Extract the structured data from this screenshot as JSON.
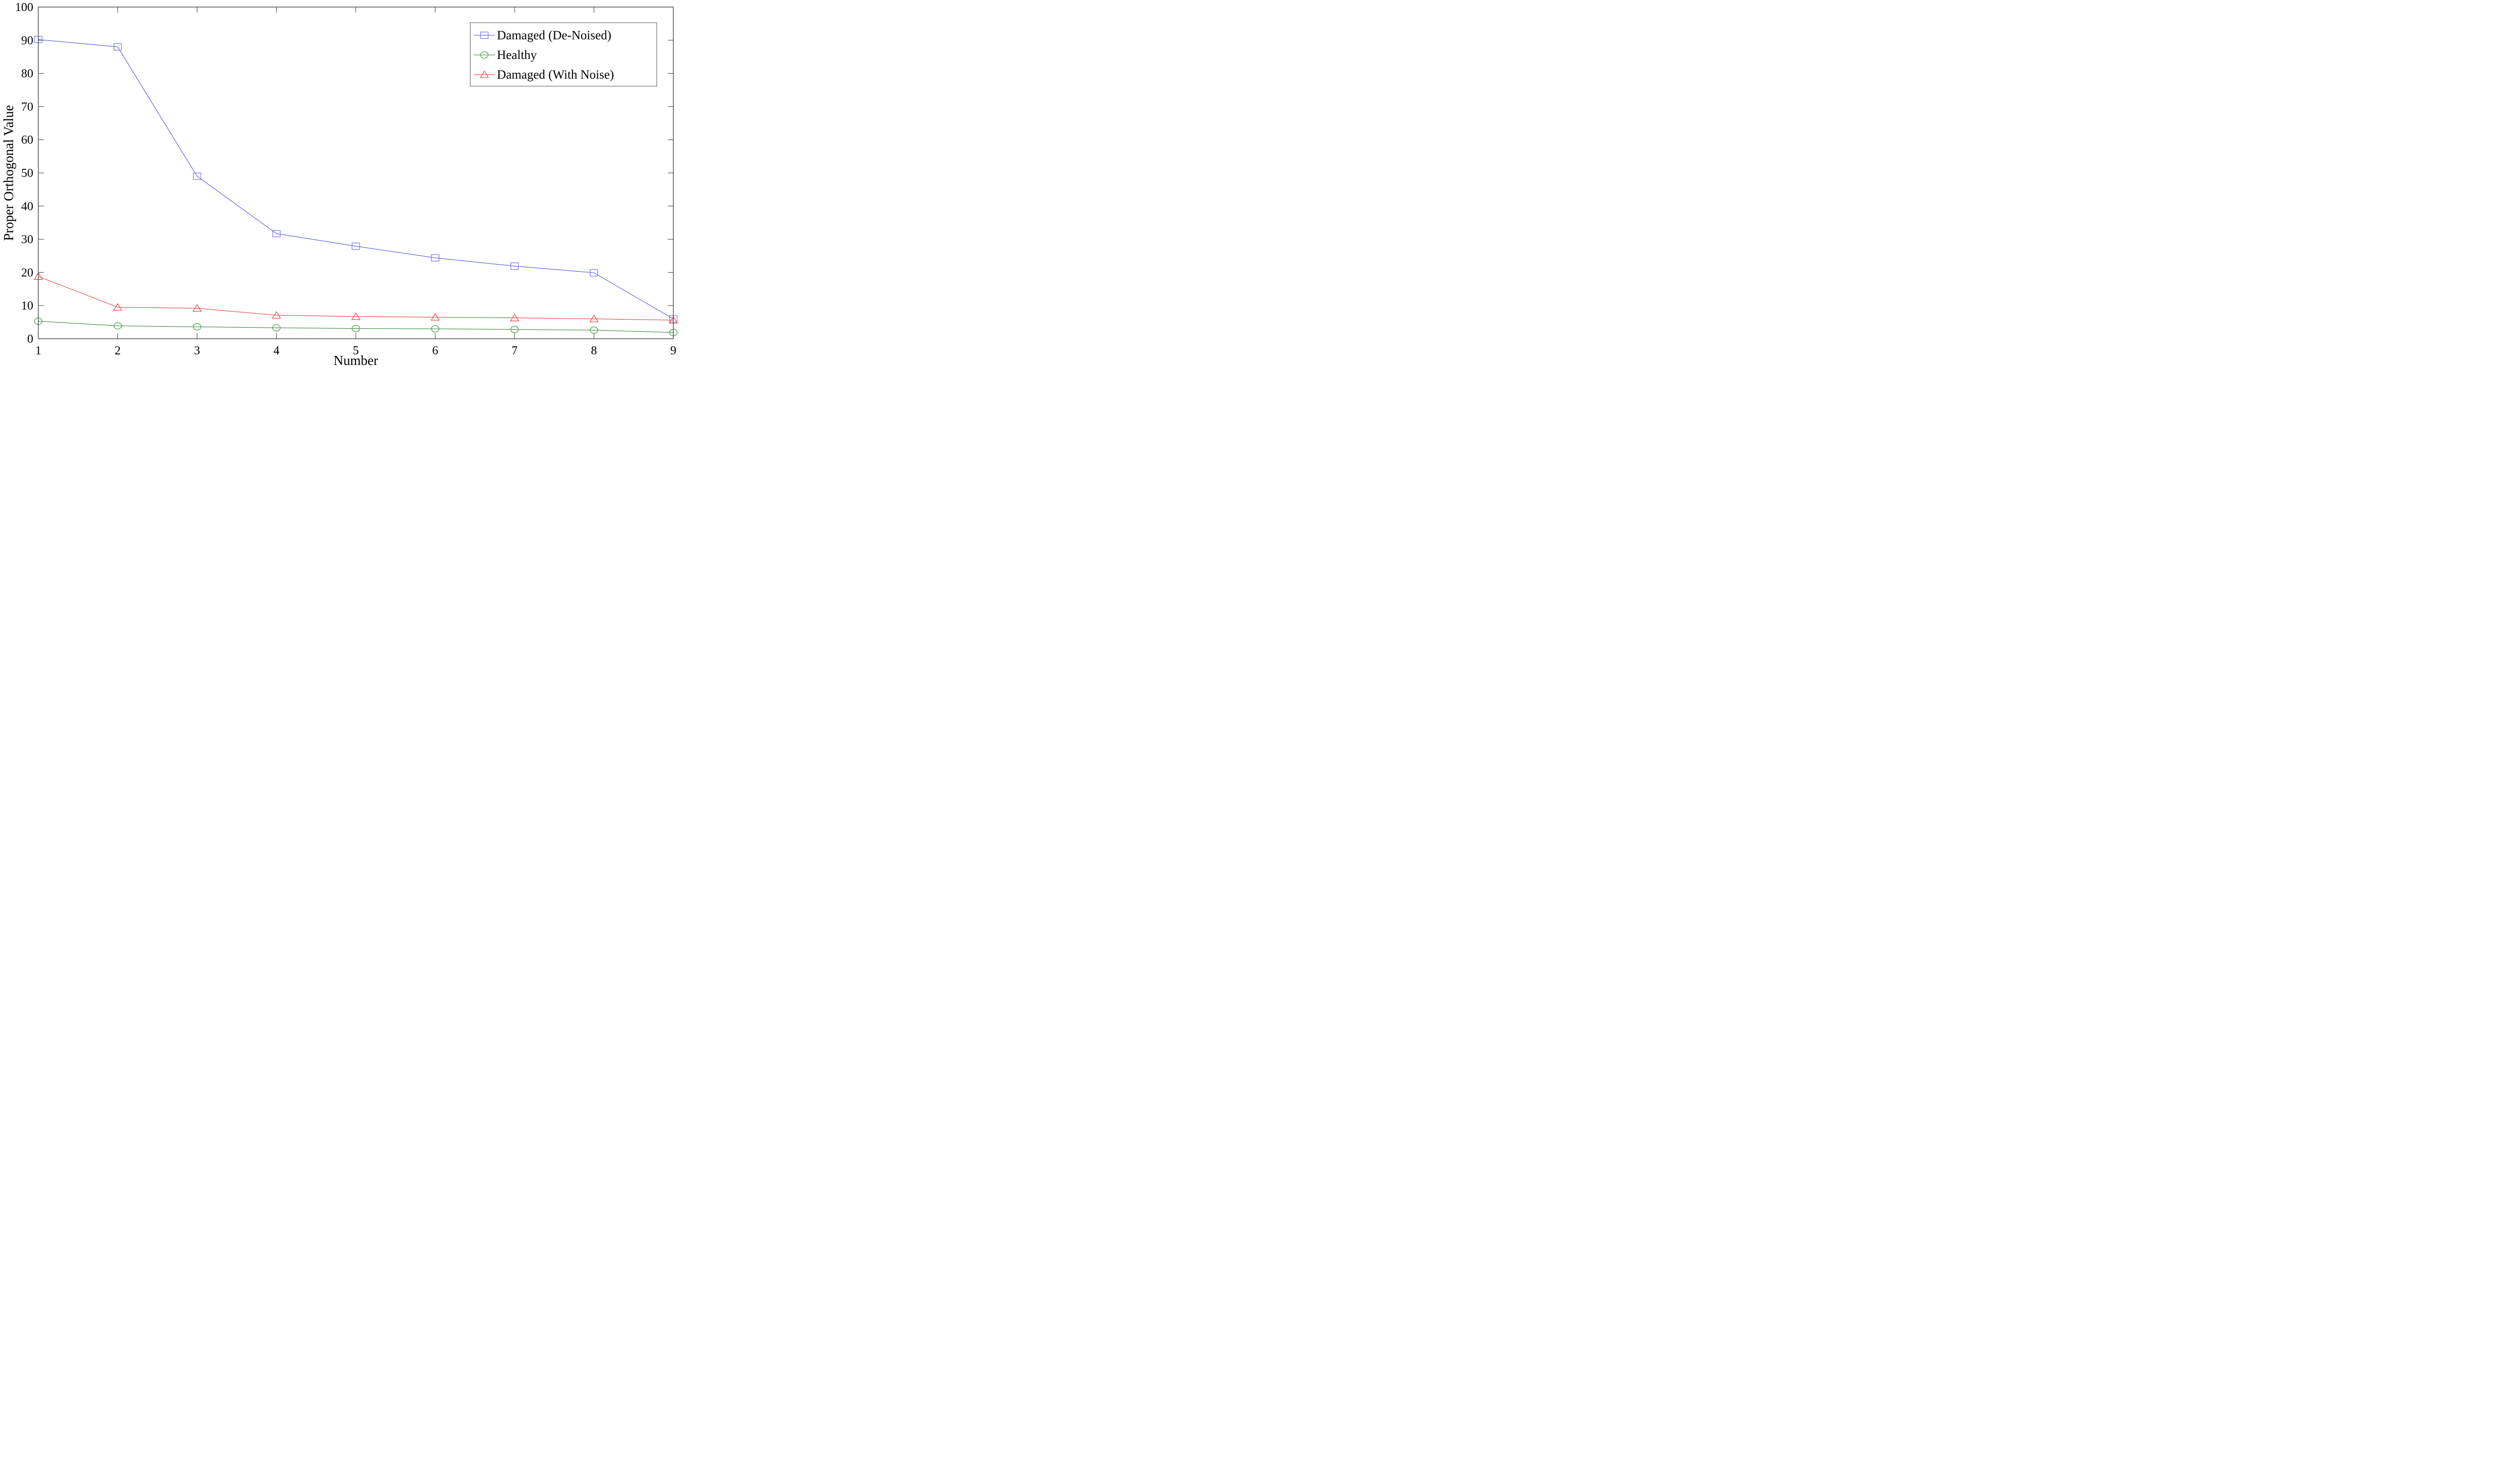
{
  "chart_data": {
    "type": "line",
    "title": "",
    "xlabel": "Number",
    "ylabel": "Proper Orthogonal Value",
    "xlim": [
      1,
      9
    ],
    "ylim": [
      0,
      100
    ],
    "x": [
      1,
      2,
      3,
      4,
      5,
      6,
      7,
      8,
      9
    ],
    "x_tick_labels": [
      "1",
      "2",
      "3",
      "4",
      "5",
      "6",
      "7",
      "8",
      "9"
    ],
    "y_ticks": [
      0,
      10,
      20,
      30,
      40,
      50,
      60,
      70,
      80,
      90,
      100
    ],
    "y_tick_labels": [
      "0",
      "10",
      "20",
      "30",
      "40",
      "50",
      "60",
      "70",
      "80",
      "90",
      "100"
    ],
    "grid": false,
    "axis_color": "#3c3c3c",
    "legend": {
      "position": "top-right",
      "border_color": "#555555",
      "background": "#ffffff"
    },
    "series": [
      {
        "name": "Damaged (De-Noised)",
        "marker": "square",
        "line_color": "#4444dd",
        "marker_color": "#7d7df2",
        "values": [
          90.2,
          88.0,
          49.0,
          31.7,
          27.9,
          24.4,
          21.9,
          19.9,
          6.0
        ]
      },
      {
        "name": "Healthy",
        "marker": "circle",
        "line_color": "#2a7e2a",
        "marker_color": "#46a046",
        "values": [
          5.3,
          3.9,
          3.6,
          3.3,
          3.1,
          3.0,
          2.8,
          2.6,
          1.9
        ]
      },
      {
        "name": "Damaged (With Noise)",
        "marker": "triangle",
        "line_color": "#e03232",
        "marker_color": "#ef4d4d",
        "values": [
          18.8,
          9.5,
          9.2,
          7.1,
          6.7,
          6.5,
          6.3,
          6.0,
          5.6
        ]
      }
    ]
  }
}
